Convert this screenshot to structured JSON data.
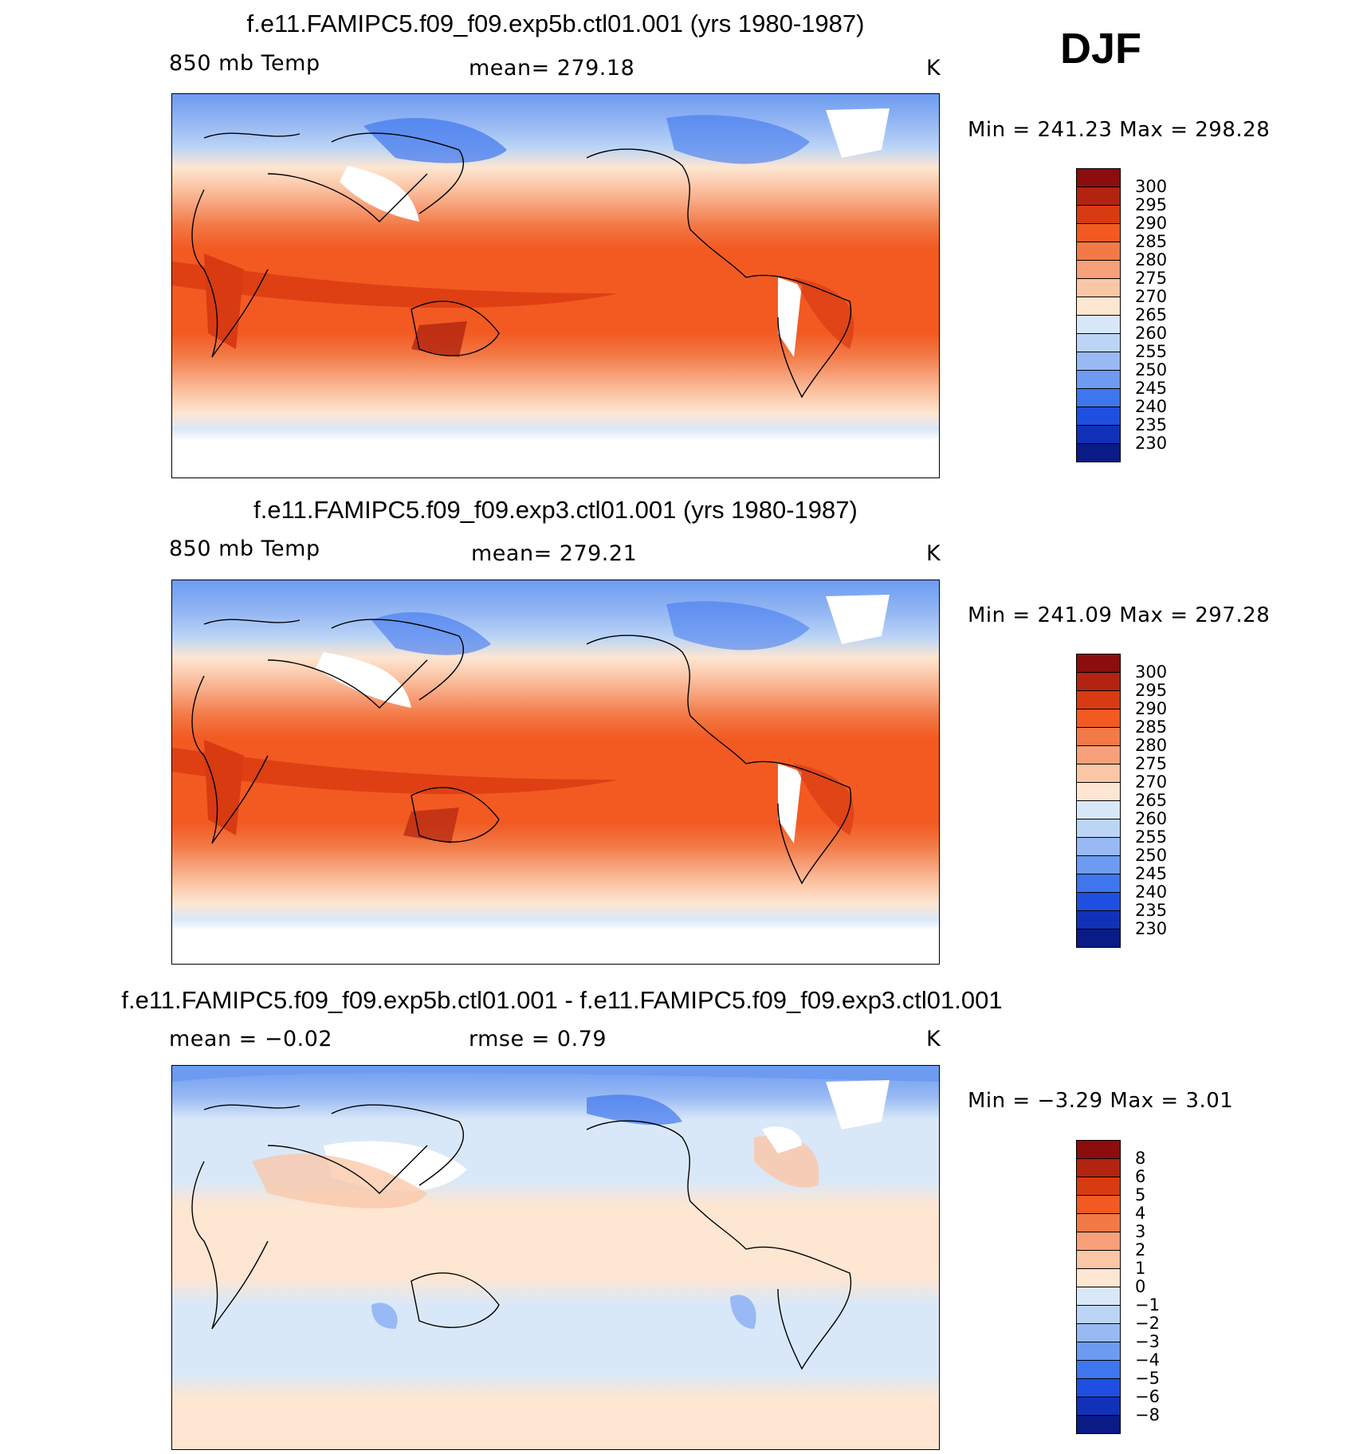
{
  "season": "DJF",
  "panels": [
    {
      "title": "f.e11.FAMIPC5.f09_f09.exp5b.ctl01.001 (yrs 1980-1987)",
      "left_label": "850 mb Temp",
      "center_label": "mean=  279.18",
      "units": "K",
      "min_max": "Min  =  241.23  Max  =  298.28",
      "colorbar": {
        "labels": [
          "300",
          "295",
          "290",
          "285",
          "280",
          "275",
          "270",
          "265",
          "260",
          "255",
          "250",
          "245",
          "240",
          "235",
          "230"
        ],
        "colors": [
          "#8b0d0d",
          "#b22410",
          "#d83a12",
          "#f25a22",
          "#f27a47",
          "#f7a079",
          "#fbc6a6",
          "#fde6d2",
          "#d9e8f8",
          "#bcd5f6",
          "#98b9f3",
          "#6c9bf1",
          "#3e76ee",
          "#1f4fe0",
          "#1131b8",
          "#0a1b85"
        ]
      }
    },
    {
      "title": "f.e11.FAMIPC5.f09_f09.exp3.ctl01.001 (yrs 1980-1987)",
      "left_label": "850 mb Temp",
      "center_label": "mean=  279.21",
      "units": "K",
      "min_max": "Min  =  241.09  Max  =  297.28",
      "colorbar": {
        "labels": [
          "300",
          "295",
          "290",
          "285",
          "280",
          "275",
          "270",
          "265",
          "260",
          "255",
          "250",
          "245",
          "240",
          "235",
          "230"
        ],
        "colors": [
          "#8b0d0d",
          "#b22410",
          "#d83a12",
          "#f25a22",
          "#f27a47",
          "#f7a079",
          "#fbc6a6",
          "#fde6d2",
          "#d9e8f8",
          "#bcd5f6",
          "#98b9f3",
          "#6c9bf1",
          "#3e76ee",
          "#1f4fe0",
          "#1131b8",
          "#0a1b85"
        ]
      }
    },
    {
      "title": "f.e11.FAMIPC5.f09_f09.exp5b.ctl01.001 - f.e11.FAMIPC5.f09_f09.exp3.ctl01.001",
      "left_label": "mean  =    −0.02",
      "center_label": "rmse  =      0.79",
      "units": "K",
      "min_max": "Min  =     −3.29  Max  =      3.01",
      "colorbar": {
        "labels": [
          "8",
          "6",
          "5",
          "4",
          "3",
          "2",
          "1",
          "0",
          "−1",
          "−2",
          "−3",
          "−4",
          "−5",
          "−6",
          "−8"
        ],
        "colors": [
          "#8b0d0d",
          "#b22410",
          "#d83a12",
          "#f25a22",
          "#f27a47",
          "#f7a079",
          "#fbc6a6",
          "#fde6d2",
          "#d9e8f8",
          "#bcd5f6",
          "#98b9f3",
          "#6c9bf1",
          "#3e76ee",
          "#1f4fe0",
          "#1131b8",
          "#0a1b85"
        ]
      }
    }
  ]
}
